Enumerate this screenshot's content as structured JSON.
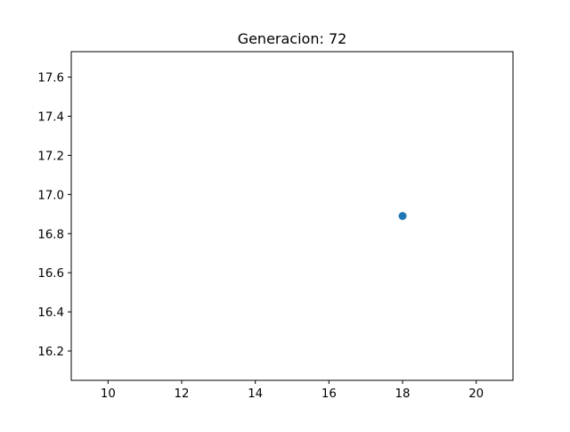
{
  "chart_data": {
    "type": "scatter",
    "title": "Generacion: 72",
    "xlabel": "",
    "ylabel": "",
    "xlim": [
      9.0,
      21.0
    ],
    "ylim": [
      16.05,
      17.73
    ],
    "xticks": [
      10,
      12,
      14,
      16,
      18,
      20
    ],
    "xtick_labels": [
      "10",
      "12",
      "14",
      "16",
      "18",
      "20"
    ],
    "yticks": [
      16.2,
      16.4,
      16.6,
      16.8,
      17.0,
      17.2,
      17.4,
      17.6
    ],
    "ytick_labels": [
      "16.2",
      "16.4",
      "16.6",
      "16.8",
      "17.0",
      "17.2",
      "17.4",
      "17.6"
    ],
    "grid": false,
    "legend": false,
    "series": [
      {
        "color": "#1f77b4",
        "points": [
          {
            "x": 18.0,
            "y": 16.89
          }
        ]
      }
    ]
  }
}
